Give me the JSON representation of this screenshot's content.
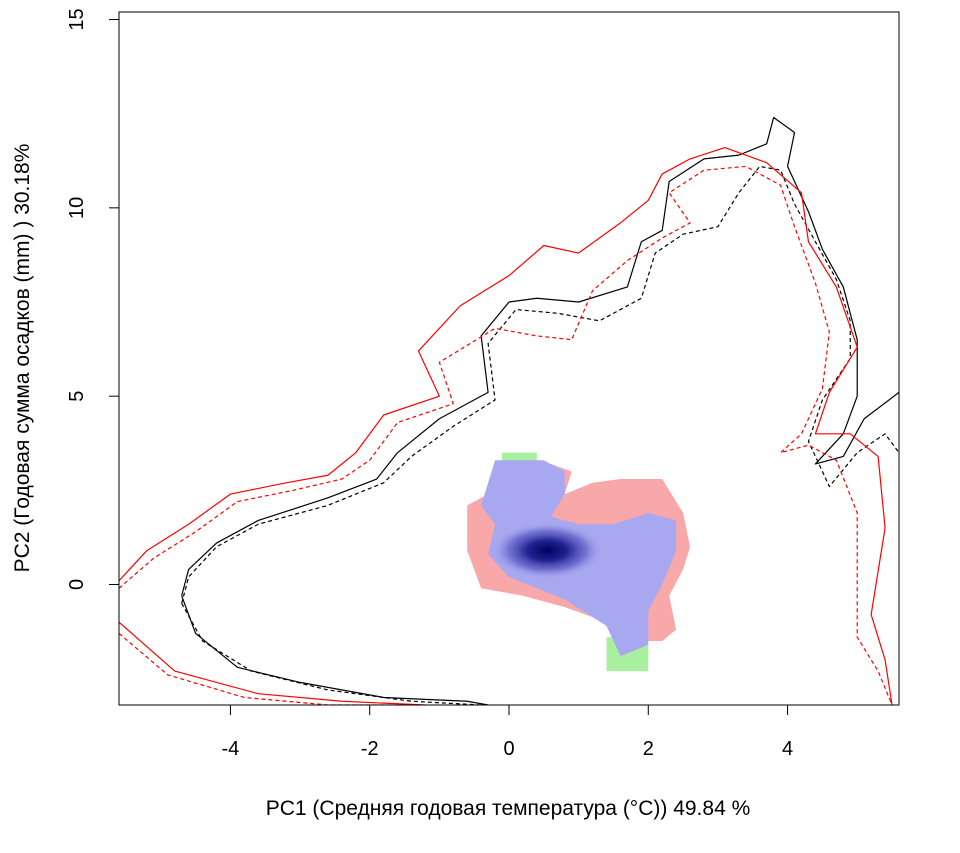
{
  "chart_data": {
    "type": "contour",
    "title": "",
    "xlabel": "PC1 (Средняя годовая температура (°C)) 49.84 %",
    "ylabel": "PC2 (Годовая сумма осадков  (mm) ) 30.18%",
    "xlim": [
      -5.6,
      5.6
    ],
    "ylim": [
      -3.2,
      15.2
    ],
    "x_ticks": [
      -4,
      -2,
      0,
      2,
      4
    ],
    "y_ticks": [
      0,
      5,
      10,
      15
    ],
    "x_tick_labels": [
      "-4",
      "-2",
      "0",
      "2",
      "4"
    ],
    "y_tick_labels": [
      "0",
      "5",
      "10",
      "15"
    ],
    "grid": false,
    "legend": "none",
    "colors": {
      "contour_black": "#000000",
      "contour_red": "#ff0000",
      "region_red": "#f8a8a8",
      "region_green": "#a8f0a0",
      "region_blue": "#a8a8f0",
      "density_core": "#000060"
    },
    "series": [
      {
        "style": "solid",
        "color": "#000000",
        "points": [
          [
            -4.7,
            -0.3
          ],
          [
            -4.6,
            0.4
          ],
          [
            -4.2,
            1.1
          ],
          [
            -3.6,
            1.7
          ],
          [
            -2.6,
            2.3
          ],
          [
            -1.9,
            2.8
          ],
          [
            -1.6,
            3.5
          ],
          [
            -1.0,
            4.4
          ],
          [
            -0.3,
            5.1
          ],
          [
            -0.4,
            6.6
          ],
          [
            0.0,
            7.5
          ],
          [
            0.4,
            7.6
          ],
          [
            1.0,
            7.5
          ],
          [
            1.7,
            7.9
          ],
          [
            1.9,
            9.1
          ],
          [
            2.2,
            9.4
          ],
          [
            2.3,
            10.7
          ],
          [
            2.8,
            11.3
          ],
          [
            3.3,
            11.4
          ],
          [
            3.7,
            11.7
          ],
          [
            3.8,
            12.4
          ],
          [
            4.1,
            12.0
          ],
          [
            4.0,
            11.1
          ],
          [
            4.3,
            9.9
          ],
          [
            4.5,
            8.9
          ],
          [
            4.8,
            7.9
          ],
          [
            5.0,
            6.5
          ],
          [
            5.0,
            5.0
          ],
          [
            4.8,
            4.0
          ],
          [
            4.4,
            3.2
          ],
          [
            4.8,
            3.4
          ],
          [
            5.1,
            4.4
          ],
          [
            5.6,
            5.1
          ]
        ]
      },
      {
        "style": "dashed",
        "color": "#000000",
        "points": [
          [
            -4.7,
            -0.5
          ],
          [
            -4.6,
            0.2
          ],
          [
            -4.2,
            1.0
          ],
          [
            -3.6,
            1.6
          ],
          [
            -2.6,
            2.1
          ],
          [
            -1.8,
            2.7
          ],
          [
            -1.4,
            3.4
          ],
          [
            -0.8,
            4.2
          ],
          [
            -0.2,
            4.9
          ],
          [
            -0.3,
            6.4
          ],
          [
            0.1,
            7.3
          ],
          [
            0.7,
            7.2
          ],
          [
            1.3,
            7.0
          ],
          [
            1.9,
            7.6
          ],
          [
            2.1,
            8.8
          ],
          [
            2.5,
            9.3
          ],
          [
            3.0,
            9.5
          ],
          [
            3.3,
            10.4
          ],
          [
            3.6,
            11.1
          ],
          [
            3.9,
            11.0
          ],
          [
            4.1,
            10.1
          ],
          [
            4.4,
            9.1
          ],
          [
            4.7,
            8.1
          ],
          [
            4.9,
            7.0
          ],
          [
            4.9,
            6.0
          ],
          [
            4.5,
            4.9
          ],
          [
            4.3,
            3.8
          ],
          [
            4.6,
            2.6
          ],
          [
            5.0,
            3.5
          ],
          [
            5.4,
            4.0
          ],
          [
            5.6,
            3.5
          ]
        ]
      },
      {
        "style": "solid",
        "color": "#ff0000",
        "points": [
          [
            -5.6,
            0.1
          ],
          [
            -5.2,
            0.9
          ],
          [
            -4.6,
            1.6
          ],
          [
            -4.0,
            2.4
          ],
          [
            -3.2,
            2.7
          ],
          [
            -2.6,
            2.9
          ],
          [
            -2.2,
            3.5
          ],
          [
            -1.8,
            4.5
          ],
          [
            -1.0,
            5.0
          ],
          [
            -1.3,
            6.2
          ],
          [
            -0.7,
            7.4
          ],
          [
            0.0,
            8.2
          ],
          [
            0.5,
            9.0
          ],
          [
            1.0,
            8.8
          ],
          [
            1.6,
            9.6
          ],
          [
            2.0,
            10.2
          ],
          [
            2.2,
            10.9
          ],
          [
            2.6,
            11.3
          ],
          [
            3.1,
            11.6
          ],
          [
            3.7,
            11.2
          ],
          [
            4.2,
            10.4
          ],
          [
            4.3,
            9.1
          ],
          [
            4.7,
            7.9
          ],
          [
            5.0,
            6.3
          ],
          [
            4.6,
            5.1
          ],
          [
            4.4,
            4.0
          ],
          [
            4.9,
            4.0
          ],
          [
            5.3,
            3.4
          ],
          [
            5.4,
            1.5
          ],
          [
            5.2,
            -0.8
          ],
          [
            5.4,
            -2.0
          ],
          [
            5.5,
            -3.2
          ]
        ]
      },
      {
        "style": "dashed",
        "color": "#ff0000",
        "points": [
          [
            -5.6,
            -0.1
          ],
          [
            -5.1,
            0.7
          ],
          [
            -4.5,
            1.4
          ],
          [
            -3.9,
            2.2
          ],
          [
            -3.1,
            2.5
          ],
          [
            -2.4,
            2.8
          ],
          [
            -2.0,
            3.3
          ],
          [
            -1.6,
            4.3
          ],
          [
            -0.8,
            4.8
          ],
          [
            -1.0,
            5.9
          ],
          [
            -0.2,
            6.8
          ],
          [
            0.4,
            6.6
          ],
          [
            0.9,
            6.5
          ],
          [
            1.2,
            7.8
          ],
          [
            1.7,
            8.6
          ],
          [
            2.2,
            9.2
          ],
          [
            2.6,
            9.6
          ],
          [
            2.3,
            10.4
          ],
          [
            2.8,
            11.0
          ],
          [
            3.4,
            11.1
          ],
          [
            3.9,
            10.6
          ],
          [
            4.1,
            9.5
          ],
          [
            4.4,
            8.0
          ],
          [
            4.6,
            6.7
          ],
          [
            4.5,
            5.2
          ],
          [
            4.2,
            4.0
          ],
          [
            3.9,
            3.5
          ],
          [
            4.3,
            3.7
          ],
          [
            4.7,
            3.3
          ],
          [
            5.0,
            1.9
          ],
          [
            5.0,
            0.0
          ],
          [
            5.0,
            -1.4
          ],
          [
            5.3,
            -2.3
          ],
          [
            5.5,
            -3.2
          ]
        ]
      },
      {
        "style": "solid",
        "color": "#ff0000",
        "points": [
          [
            -5.6,
            -1.0
          ],
          [
            -4.8,
            -2.3
          ],
          [
            -3.6,
            -2.9
          ],
          [
            -2.4,
            -3.1
          ],
          [
            -1.2,
            -3.2
          ]
        ]
      },
      {
        "style": "dashed",
        "color": "#ff0000",
        "points": [
          [
            -5.6,
            -1.3
          ],
          [
            -4.9,
            -2.4
          ],
          [
            -3.8,
            -3.0
          ],
          [
            -2.6,
            -3.2
          ],
          [
            -1.4,
            -3.2
          ]
        ]
      },
      {
        "style": "solid",
        "color": "#000000",
        "points": [
          [
            -4.7,
            -0.3
          ],
          [
            -4.5,
            -1.3
          ],
          [
            -3.9,
            -2.2
          ],
          [
            -3.0,
            -2.6
          ],
          [
            -1.8,
            -3.0
          ],
          [
            -0.6,
            -3.1
          ],
          [
            -0.3,
            -3.2
          ]
        ]
      },
      {
        "style": "dashed",
        "color": "#000000",
        "points": [
          [
            -4.7,
            -0.5
          ],
          [
            -4.4,
            -1.5
          ],
          [
            -3.7,
            -2.3
          ],
          [
            -2.6,
            -2.8
          ],
          [
            -1.4,
            -3.1
          ],
          [
            -0.4,
            -3.2
          ]
        ]
      }
    ],
    "regions": [
      {
        "color": "#f8a8a8",
        "points": [
          [
            -0.6,
            2.1
          ],
          [
            -0.2,
            2.5
          ],
          [
            0.6,
            3.2
          ],
          [
            0.9,
            3.0
          ],
          [
            0.8,
            2.4
          ],
          [
            1.2,
            2.7
          ],
          [
            1.6,
            2.8
          ],
          [
            2.2,
            2.8
          ],
          [
            2.5,
            1.9
          ],
          [
            2.6,
            1.0
          ],
          [
            2.5,
            0.4
          ],
          [
            2.3,
            -0.3
          ],
          [
            2.4,
            -1.2
          ],
          [
            2.2,
            -1.5
          ],
          [
            1.7,
            -1.5
          ],
          [
            1.4,
            -1.0
          ],
          [
            0.8,
            -0.6
          ],
          [
            0.2,
            -0.3
          ],
          [
            -0.4,
            -0.1
          ],
          [
            -0.6,
            0.9
          ]
        ]
      },
      {
        "color": "#a8f0a0",
        "points": [
          [
            -0.1,
            3.5
          ],
          [
            0.4,
            3.5
          ],
          [
            0.4,
            2.7
          ],
          [
            -0.1,
            2.7
          ]
        ]
      },
      {
        "color": "#a8f0a0",
        "points": [
          [
            1.4,
            -1.4
          ],
          [
            2.0,
            -1.4
          ],
          [
            2.0,
            -2.3
          ],
          [
            1.4,
            -2.3
          ]
        ]
      },
      {
        "color": "#a8a8f0",
        "points": [
          [
            -0.2,
            3.3
          ],
          [
            0.5,
            3.3
          ],
          [
            0.8,
            3.0
          ],
          [
            0.8,
            2.4
          ],
          [
            0.6,
            1.8
          ],
          [
            1.0,
            1.6
          ],
          [
            1.5,
            1.6
          ],
          [
            2.0,
            1.9
          ],
          [
            2.4,
            1.7
          ],
          [
            2.4,
            0.9
          ],
          [
            2.2,
            0.0
          ],
          [
            2.0,
            -0.7
          ],
          [
            2.0,
            -1.6
          ],
          [
            1.6,
            -1.9
          ],
          [
            1.4,
            -1.1
          ],
          [
            0.8,
            -0.4
          ],
          [
            0.4,
            -0.1
          ],
          [
            0.0,
            0.2
          ],
          [
            -0.3,
            0.8
          ],
          [
            -0.2,
            1.6
          ],
          [
            -0.4,
            2.1
          ]
        ]
      }
    ],
    "density_core": {
      "center": [
        0.55,
        0.9
      ],
      "radius_x": 0.8,
      "radius_y": 0.75
    }
  }
}
